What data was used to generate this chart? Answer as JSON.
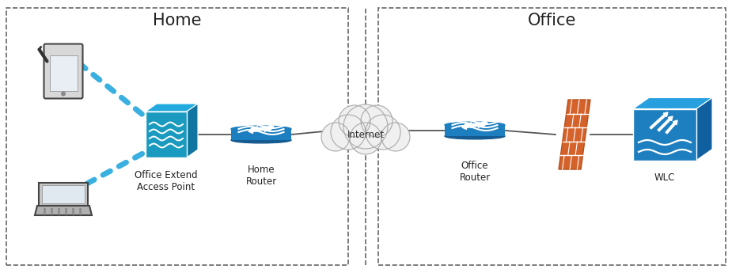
{
  "bg_color": "#ffffff",
  "border_color": "#666666",
  "home_label": "Home",
  "office_label": "Office",
  "internet_label": "Internet",
  "node_labels": {
    "ap": "Office Extend\nAccess Point",
    "home_router": "Home\nRouter",
    "office_router": "Office\nRouter",
    "wlc": "WLC"
  },
  "router_color": "#1e7fc0",
  "router_dark": "#155a90",
  "ap_front_color": "#1a9abf",
  "ap_top_color": "#22aadf",
  "ap_right_color": "#1075a0",
  "firewall_color": "#d4622a",
  "firewall_dark": "#b84e1a",
  "wlc_front_color": "#1e7fc0",
  "wlc_top_color": "#28a0df",
  "wlc_right_color": "#1060a0",
  "chain_color": "#3ab0e0",
  "line_color": "#555555",
  "cloud_fill": "#f0f0f0",
  "cloud_edge": "#aaaaaa",
  "label_fontsize": 8.5,
  "section_fontsize": 15
}
